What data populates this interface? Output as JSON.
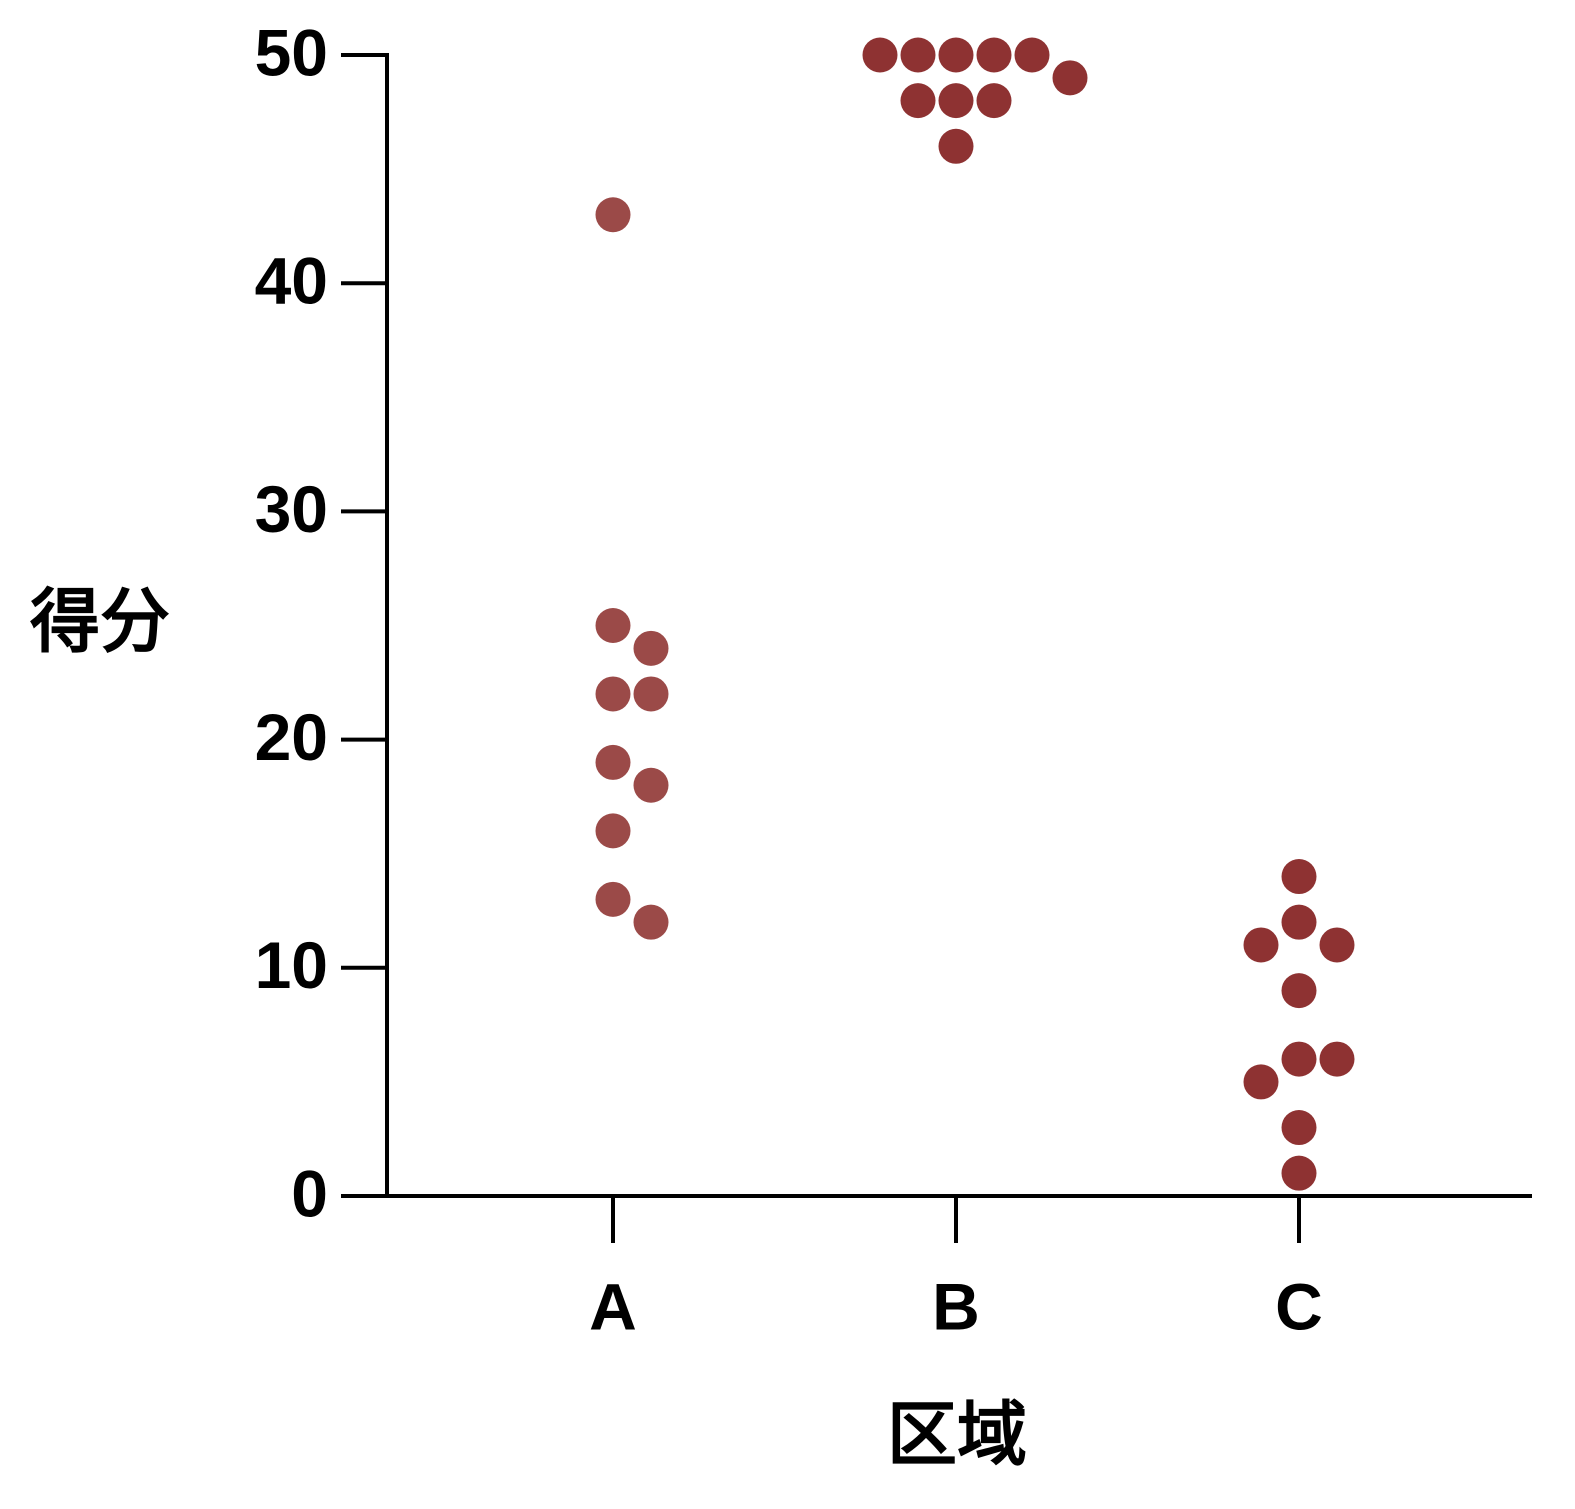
{
  "chart_data": {
    "type": "strip",
    "x_label": "区域",
    "y_label": "得分",
    "categories": [
      "A",
      "B",
      "C"
    ],
    "values": [
      [
        43,
        25,
        24,
        22,
        22,
        19,
        18,
        16,
        13,
        12
      ],
      [
        50,
        50,
        50,
        50,
        50,
        49,
        48,
        48,
        48,
        46
      ],
      [
        14,
        12,
        11,
        11,
        9,
        6,
        6,
        5,
        3,
        1
      ]
    ],
    "colors": [
      "#9b4a48",
      "#8e3232",
      "#8e3232"
    ],
    "ylim": [
      0,
      50
    ],
    "yticks": [
      0,
      10,
      20,
      30,
      40,
      50
    ]
  }
}
